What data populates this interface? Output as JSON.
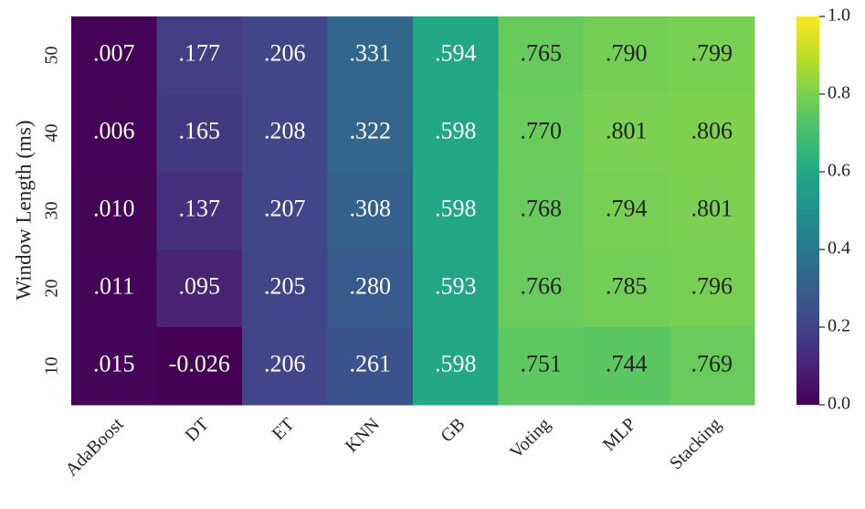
{
  "chart_data": {
    "type": "heatmap",
    "ylabel": "Window Length (ms)",
    "x_categories": [
      "AdaBoost",
      "DT",
      "ET",
      "KNN",
      "GB",
      "Voting",
      "MLP",
      "Stacking"
    ],
    "y_categories": [
      "50",
      "40",
      "30",
      "20",
      "10"
    ],
    "values": [
      [
        0.007,
        0.177,
        0.206,
        0.331,
        0.594,
        0.765,
        0.79,
        0.799
      ],
      [
        0.006,
        0.165,
        0.208,
        0.322,
        0.598,
        0.77,
        0.801,
        0.806
      ],
      [
        0.01,
        0.137,
        0.207,
        0.308,
        0.598,
        0.768,
        0.794,
        0.801
      ],
      [
        0.011,
        0.095,
        0.205,
        0.28,
        0.593,
        0.766,
        0.785,
        0.796
      ],
      [
        0.015,
        -0.026,
        0.206,
        0.261,
        0.598,
        0.751,
        0.744,
        0.769
      ]
    ],
    "value_labels": [
      [
        ".007",
        ".177",
        ".206",
        ".331",
        ".594",
        ".765",
        ".790",
        ".799"
      ],
      [
        ".006",
        ".165",
        ".208",
        ".322",
        ".598",
        ".770",
        ".801",
        ".806"
      ],
      [
        ".010",
        ".137",
        ".207",
        ".308",
        ".598",
        ".768",
        ".794",
        ".801"
      ],
      [
        ".011",
        ".095",
        ".205",
        ".280",
        ".593",
        ".766",
        ".785",
        ".796"
      ],
      [
        ".015",
        "-0.026",
        ".206",
        ".261",
        ".598",
        ".751",
        ".744",
        ".769"
      ]
    ],
    "colormap": "viridis",
    "clim": [
      0,
      1
    ],
    "cticks": [
      {
        "value": 0,
        "label": "0.0"
      },
      {
        "value": 0.2,
        "label": "0.2"
      },
      {
        "value": 0.4,
        "label": "0.4"
      },
      {
        "value": 0.6,
        "label": "0.6"
      },
      {
        "value": 0.8,
        "label": "0.8"
      },
      {
        "value": 1,
        "label": "1.0"
      }
    ]
  }
}
